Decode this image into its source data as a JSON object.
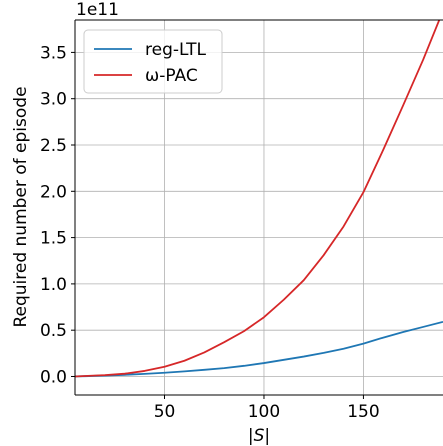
{
  "chart_data": {
    "type": "line",
    "title": "",
    "xlabel": "|S|",
    "ylabel": "Required number of episode",
    "y_offset_text": "1e11",
    "xlim": [
      5,
      190
    ],
    "ylim": [
      -20000000000.0,
      385000000000.0
    ],
    "xticks": [
      50,
      100,
      150
    ],
    "xtick_labels": [
      "50",
      "100",
      "150"
    ],
    "yticks": [
      0,
      50000000000.0,
      100000000000.0,
      150000000000.0,
      200000000000.0,
      250000000000.0,
      300000000000.0,
      350000000000.0
    ],
    "ytick_labels": [
      "0.0",
      "0.5",
      "1.0",
      "1.5",
      "2.0",
      "2.5",
      "3.0",
      "3.5"
    ],
    "grid": true,
    "legend_position": "top-left",
    "series": [
      {
        "name": "reg-LTL",
        "color": "#1f77b4",
        "x": [
          5,
          10,
          20,
          30,
          40,
          50,
          60,
          70,
          80,
          90,
          100,
          110,
          120,
          130,
          140,
          150,
          160,
          170,
          180,
          190
        ],
        "y": [
          100000000.0,
          300000000.0,
          1000000000.0,
          1800000000.0,
          2800000000.0,
          4000000000.0,
          5500000000.0,
          7200000000.0,
          9000000000.0,
          11500000000.0,
          14500000000.0,
          18000000000.0,
          21500000000.0,
          25500000000.0,
          30000000000.0,
          35500000000.0,
          42000000000.0,
          48000000000.0,
          53500000000.0,
          59000000000.0
        ]
      },
      {
        "name": "ω-PAC",
        "color": "#d62728",
        "x": [
          5,
          10,
          20,
          30,
          40,
          50,
          60,
          70,
          80,
          90,
          100,
          110,
          120,
          130,
          140,
          150,
          160,
          170,
          180,
          190
        ],
        "y": [
          0,
          500000000.0,
          1500000000.0,
          3000000000.0,
          6000000000.0,
          10500000000.0,
          17000000000.0,
          26000000000.0,
          37000000000.0,
          49000000000.0,
          64000000000.0,
          83000000000.0,
          104000000000.0,
          131000000000.0,
          162000000000.0,
          199000000000.0,
          245000000000.0,
          293000000000.0,
          342000000000.0,
          395000000000.0
        ]
      }
    ]
  }
}
